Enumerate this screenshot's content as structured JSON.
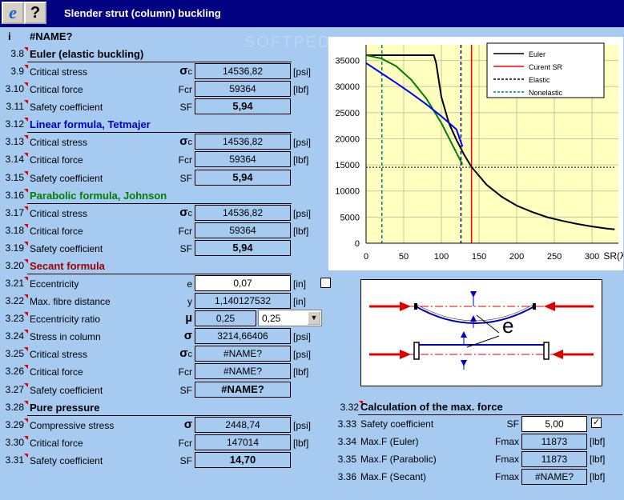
{
  "window": {
    "title": "Slender strut (column) buckling"
  },
  "header": {
    "i_label": "i",
    "name_error": "#NAME?"
  },
  "rows": [
    {
      "num": "3.8",
      "label": "Euler (elastic buckling)",
      "type": "hdr",
      "color": "#000000"
    },
    {
      "num": "3.9",
      "label": "Critical stress",
      "sym": "σ",
      "sub": "c",
      "value": "14536,82",
      "unit": "[psi]"
    },
    {
      "num": "3.10",
      "label": "Critical force",
      "sym": "Fcr",
      "value": "59364",
      "unit": "[lbf]"
    },
    {
      "num": "3.11",
      "label": "Safety coefficient",
      "sym": "SF",
      "value": "5,94",
      "bold": true
    },
    {
      "num": "3.12",
      "label": "Linear formula, Tetmajer",
      "type": "hdr",
      "color": "#0000c0"
    },
    {
      "num": "3.13",
      "label": "Critical stress",
      "sym": "σ",
      "sub": "c",
      "value": "14536,82",
      "unit": "[psi]"
    },
    {
      "num": "3.14",
      "label": "Critical force",
      "sym": "Fcr",
      "value": "59364",
      "unit": "[lbf]"
    },
    {
      "num": "3.15",
      "label": "Safety coefficient",
      "sym": "SF",
      "value": "5,94",
      "bold": true
    },
    {
      "num": "3.16",
      "label": "Parabolic formula, Johnson",
      "type": "hdr",
      "color": "#008000"
    },
    {
      "num": "3.17",
      "label": "Critical stress",
      "sym": "σ",
      "sub": "c",
      "value": "14536,82",
      "unit": "[psi]"
    },
    {
      "num": "3.18",
      "label": "Critical force",
      "sym": "Fcr",
      "value": "59364",
      "unit": "[lbf]"
    },
    {
      "num": "3.19",
      "label": "Safety coefficient",
      "sym": "SF",
      "value": "5,94",
      "bold": true
    },
    {
      "num": "3.20",
      "label": "Secant formula",
      "type": "hdr",
      "color": "#a00000"
    },
    {
      "num": "3.21",
      "label": "Eccentricity",
      "sym": "e",
      "value": "0,07",
      "unit": "[in]",
      "white": true
    },
    {
      "num": "3.22",
      "label": "Max. fibre distance",
      "sym": "y",
      "value": "1,140127532",
      "unit": "[in]"
    },
    {
      "num": "3.23",
      "label": "Eccentricity ratio",
      "sym": "µ",
      "value": "0,25",
      "combo": "0,25"
    },
    {
      "num": "3.24",
      "label": "Stress in column",
      "sym": "σ",
      "value": "3214,66406",
      "unit": "[psi]"
    },
    {
      "num": "3.25",
      "label": "Critical stress",
      "sym": "σ",
      "sub": "c",
      "value": "#NAME?",
      "unit": "[psi]"
    },
    {
      "num": "3.26",
      "label": "Critical force",
      "sym": "Fcr",
      "value": "#NAME?",
      "unit": "[lbf]"
    },
    {
      "num": "3.27",
      "label": "Safety coefficient",
      "sym": "SF",
      "value": "#NAME?",
      "bold": true
    },
    {
      "num": "3.28",
      "label": "Pure pressure",
      "type": "hdr",
      "color": "#000000"
    },
    {
      "num": "3.29",
      "label": "Compressive stress",
      "sym": "σ",
      "value": "2448,74",
      "unit": "[psi]"
    },
    {
      "num": "3.30",
      "label": "Critical force",
      "sym": "Fcr",
      "value": "147014",
      "unit": "[lbf]"
    },
    {
      "num": "3.31",
      "label": "Safety coefficient",
      "sym": "SF",
      "value": "14,70",
      "bold": true
    }
  ],
  "maxforce": {
    "header_num": "3.32",
    "header": "Calculation of the max. force",
    "rows": [
      {
        "num": "3.33",
        "label": "Safety coefficient",
        "sym": "SF",
        "value": "5,00",
        "white": true,
        "checked": "✓"
      },
      {
        "num": "3.34",
        "label": "Max.F (Euler)",
        "sym": "Fmax",
        "value": "11873",
        "unit": "[lbf]"
      },
      {
        "num": "3.35",
        "label": "Max.F (Parabolic)",
        "sym": "Fmax",
        "value": "11873",
        "unit": "[lbf]"
      },
      {
        "num": "3.36",
        "label": "Max.F (Secant)",
        "sym": "Fmax",
        "value": "#NAME?",
        "unit": "[lbf]"
      }
    ]
  },
  "watermark": "SOFTPEDIA",
  "diagram": {
    "label": "e"
  },
  "chart_data": {
    "type": "line",
    "xlabel": "SR(λ)",
    "xlim": [
      0,
      335
    ],
    "ylim": [
      0,
      38000
    ],
    "xticks": [
      0,
      50,
      100,
      150,
      200,
      250,
      300
    ],
    "yticks": [
      0,
      5000,
      10000,
      15000,
      20000,
      25000,
      30000,
      35000
    ],
    "grid": true,
    "legend_position": "top-right",
    "legend": [
      {
        "name": "Euler",
        "style": "solid",
        "color": "#000000"
      },
      {
        "name": "Curent SR",
        "style": "solid",
        "color": "#ff0000"
      },
      {
        "name": "Elastic",
        "style": "dashed",
        "color": "#000000"
      },
      {
        "name": "Nonelastic",
        "style": "dashed",
        "color": "#008080"
      }
    ],
    "series": [
      {
        "name": "Euler",
        "color": "#000000",
        "x": [
          0,
          90,
          93,
          100,
          110,
          120,
          130,
          140,
          160,
          180,
          200,
          220,
          240,
          260,
          280,
          300,
          320,
          330
        ],
        "y": [
          36000,
          36000,
          34500,
          28000,
          23000,
          19800,
          17000,
          14600,
          11200,
          8900,
          7200,
          6000,
          5000,
          4300,
          3700,
          3200,
          2800,
          2650
        ]
      },
      {
        "name": "Parabolic",
        "color": "#008000",
        "x": [
          0,
          20,
          40,
          60,
          80,
          100,
          120,
          128
        ],
        "y": [
          36000,
          35400,
          33900,
          31300,
          27700,
          23000,
          17300,
          15100
        ]
      },
      {
        "name": "Linear",
        "color": "#0000ff",
        "x": [
          0,
          20,
          40,
          60,
          80,
          100,
          120,
          128
        ],
        "y": [
          34500,
          32600,
          30700,
          28700,
          26600,
          24300,
          21800,
          18500
        ]
      }
    ],
    "vlines": [
      {
        "name": "Curent SR",
        "x": 140,
        "color": "#ff0000",
        "style": "solid"
      },
      {
        "name": "Elastic",
        "x": 126,
        "color": "#000080",
        "style": "dashed"
      },
      {
        "name": "Nonelastic",
        "x": 21,
        "color": "#008080",
        "style": "dashed"
      }
    ],
    "hlines": [
      {
        "name": "Stress",
        "y": 14537,
        "color": "#000000",
        "style": "dotted"
      }
    ]
  }
}
